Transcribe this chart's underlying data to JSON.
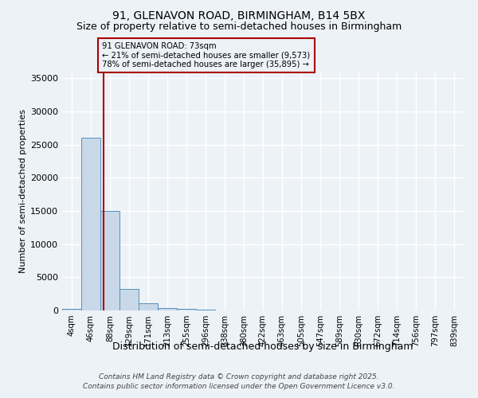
{
  "title1": "91, GLENAVON ROAD, BIRMINGHAM, B14 5BX",
  "title2": "Size of property relative to semi-detached houses in Birmingham",
  "xlabel": "Distribution of semi-detached houses by size in Birmingham",
  "ylabel": "Number of semi-detached properties",
  "categories": [
    "4sqm",
    "46sqm",
    "88sqm",
    "129sqm",
    "171sqm",
    "213sqm",
    "255sqm",
    "296sqm",
    "338sqm",
    "380sqm",
    "422sqm",
    "463sqm",
    "505sqm",
    "547sqm",
    "589sqm",
    "630sqm",
    "672sqm",
    "714sqm",
    "756sqm",
    "797sqm",
    "839sqm"
  ],
  "bar_heights": [
    300,
    26000,
    15000,
    3200,
    1100,
    400,
    200,
    100,
    0,
    0,
    0,
    0,
    0,
    0,
    0,
    0,
    0,
    0,
    0,
    0,
    0
  ],
  "bar_color": "#c8d8e8",
  "bar_edge_color": "#5590bb",
  "property_line_x": 1.65,
  "property_line_color": "#aa0000",
  "annotation_text": "91 GLENAVON ROAD: 73sqm\n← 21% of semi-detached houses are smaller (9,573)\n78% of semi-detached houses are larger (35,895) →",
  "annotation_box_color": "#aa0000",
  "ylim": [
    0,
    36000
  ],
  "yticks": [
    0,
    5000,
    10000,
    15000,
    20000,
    25000,
    30000,
    35000
  ],
  "footer1": "Contains HM Land Registry data © Crown copyright and database right 2025.",
  "footer2": "Contains public sector information licensed under the Open Government Licence v3.0.",
  "bg_color": "#edf2f7",
  "grid_color": "#ffffff"
}
